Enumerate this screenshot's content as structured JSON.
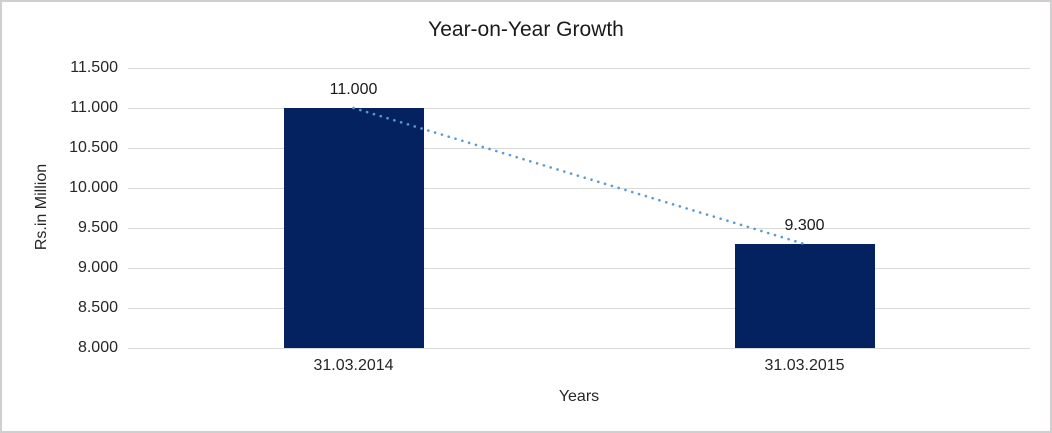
{
  "chart_data": {
    "type": "bar",
    "title": "Year-on-Year Growth",
    "xlabel": "Years",
    "ylabel": "Rs.in Million",
    "categories": [
      "31.03.2014",
      "31.03.2015"
    ],
    "values": [
      11.0,
      9.3
    ],
    "data_labels": [
      "11.000",
      "9.300"
    ],
    "ylim": [
      8.0,
      11.5
    ],
    "y_tick_values": [
      11.5,
      11.0,
      10.5,
      10.0,
      9.5,
      9.0,
      8.5,
      8.0
    ],
    "y_tick_labels": [
      "11.500",
      "11.000",
      "10.500",
      "10.000",
      "9.500",
      "9.000",
      "8.500",
      "8.000"
    ],
    "grid": true,
    "legend": "none",
    "trendline": {
      "type": "linear",
      "style": "dotted",
      "from_value": 11.0,
      "to_value": 9.3
    }
  },
  "colors": {
    "bar": "#04225F",
    "trendline": "#5B9BD5",
    "gridline": "#D9D9D9",
    "text": "#262626",
    "frame_border": "#D0CECE",
    "background": "#FFFFFF"
  }
}
